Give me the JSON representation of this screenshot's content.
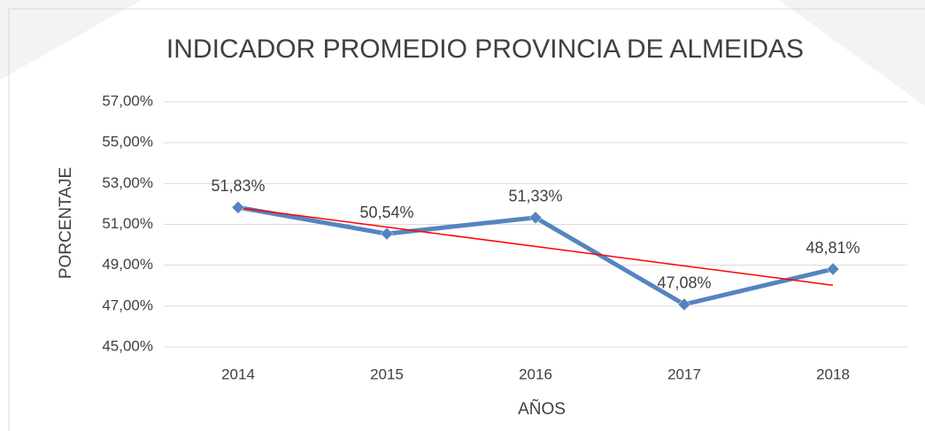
{
  "chart_data": {
    "type": "line",
    "title": "INDICADOR PROMEDIO PROVINCIA DE ALMEIDAS",
    "x_label": "AÑOS",
    "y_label": "PORCENTAJE",
    "categories": [
      "2014",
      "2015",
      "2016",
      "2017",
      "2018"
    ],
    "series": [
      {
        "color": "#5584c0",
        "values": [
          51.83,
          50.54,
          51.33,
          47.08,
          48.81
        ],
        "value_labels": [
          "51,83%",
          "50,54%",
          "51,33%",
          "47,08%",
          "48,81%"
        ]
      }
    ],
    "trendline": {
      "type": "linear",
      "color": "#ff0000"
    },
    "ylim": [
      45,
      57
    ],
    "yticks": [
      {
        "value": 45,
        "label": "45,00%"
      },
      {
        "value": 47,
        "label": "47,00%"
      },
      {
        "value": 49,
        "label": "49,00%"
      },
      {
        "value": 51,
        "label": "51,00%"
      },
      {
        "value": 53,
        "label": "53,00%"
      },
      {
        "value": 55,
        "label": "55,00%"
      },
      {
        "value": 57,
        "label": "57,00%"
      }
    ],
    "grid": true
  }
}
